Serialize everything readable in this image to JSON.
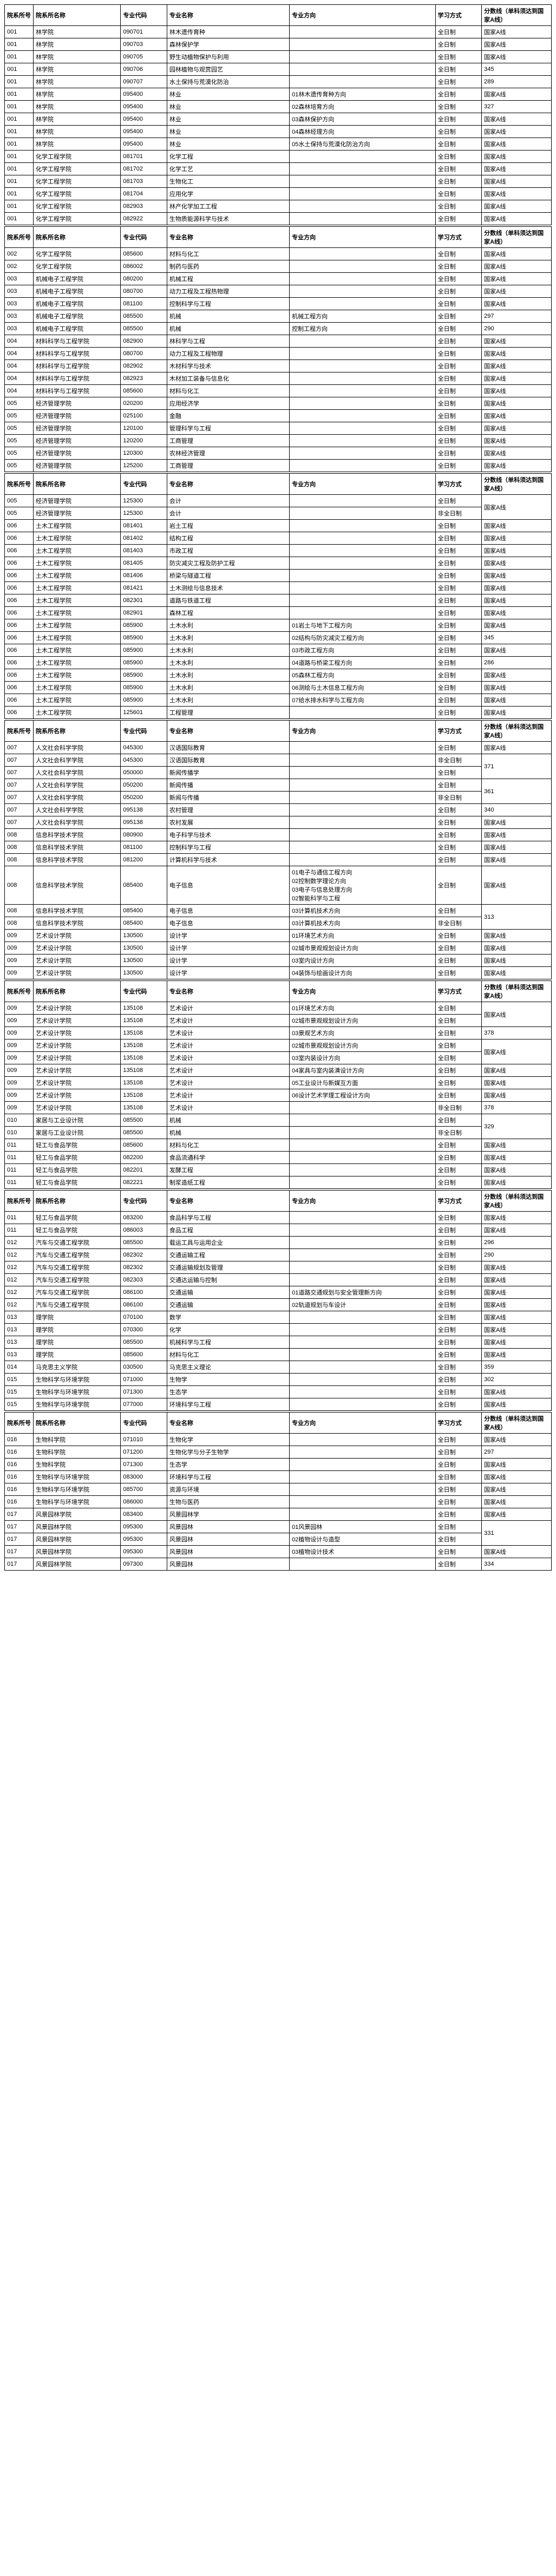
{
  "headers": [
    "院系所号",
    "院系所名称",
    "专业代码",
    "专业名称",
    "专业方向",
    "学习方式",
    "分数线（单科须达到国家A线）"
  ],
  "sections": [
    {
      "rows": [
        [
          "001",
          "林学院",
          "090701",
          "林木遗传育种",
          "",
          "全日制",
          "国家A线"
        ],
        [
          "001",
          "林学院",
          "090703",
          "森林保护学",
          "",
          "全日制",
          "国家A线"
        ],
        [
          "001",
          "林学院",
          "090705",
          "野生动植物保护与利用",
          "",
          "全日制",
          "国家A线"
        ],
        [
          "001",
          "林学院",
          "090706",
          "园林植物与观赏园艺",
          "",
          "全日制",
          "345"
        ],
        [
          "001",
          "林学院",
          "090707",
          "水土保持与荒漠化防治",
          "",
          "全日制",
          "289"
        ],
        [
          "001",
          "林学院",
          "095400",
          "林业",
          "01林木遗传育种方向",
          "全日制",
          "国家A线"
        ],
        [
          "001",
          "林学院",
          "095400",
          "林业",
          "02森林培育方向",
          "全日制",
          "327"
        ],
        [
          "001",
          "林学院",
          "095400",
          "林业",
          "03森林保护方向",
          "全日制",
          "国家A线"
        ],
        [
          "001",
          "林学院",
          "095400",
          "林业",
          "04森林经理方向",
          "全日制",
          "国家A线"
        ],
        [
          "001",
          "林学院",
          "095400",
          "林业",
          "05水土保持与荒漠化防治方向",
          "全日制",
          "国家A线"
        ],
        [
          "001",
          "化学工程学院",
          "081701",
          "化学工程",
          "",
          "全日制",
          "国家A线"
        ],
        [
          "001",
          "化学工程学院",
          "081702",
          "化学工艺",
          "",
          "全日制",
          "国家A线"
        ],
        [
          "001",
          "化学工程学院",
          "081703",
          "生物化工",
          "",
          "全日制",
          "国家A线"
        ],
        [
          "001",
          "化学工程学院",
          "081704",
          "应用化学",
          "",
          "全日制",
          "国家A线"
        ],
        [
          "001",
          "化学工程学院",
          "082903",
          "林产化学加工工程",
          "",
          "全日制",
          "国家A线"
        ],
        [
          "001",
          "化学工程学院",
          "082922",
          "生物质能源科学与技术",
          "",
          "全日制",
          "国家A线"
        ]
      ]
    },
    {
      "rows": [
        [
          "002",
          "化学工程学院",
          "085600",
          "材料与化工",
          "",
          "全日制",
          "国家A线"
        ],
        [
          "002",
          "化学工程学院",
          "086002",
          "制药与医药",
          "",
          "全日制",
          "国家A线"
        ],
        [
          "003",
          "机械电子工程学院",
          "080200",
          "机械工程",
          "",
          "全日制",
          "国家A线"
        ],
        [
          "003",
          "机械电子工程学院",
          "080700",
          "动力工程及工程热物理",
          "",
          "全日制",
          "国家A线"
        ],
        [
          "003",
          "机械电子工程学院",
          "081100",
          "控制科学与工程",
          "",
          "全日制",
          "国家A线"
        ],
        [
          "003",
          "机械电子工程学院",
          "085500",
          "机械",
          "机械工程方向",
          "全日制",
          "297"
        ],
        [
          "003",
          "机械电子工程学院",
          "085500",
          "机械",
          "控制工程方向",
          "全日制",
          "290"
        ],
        [
          "004",
          "材料科学与工程学院",
          "082900",
          "林科学与工程",
          "",
          "全日制",
          "国家A线"
        ],
        [
          "004",
          "材料科学与工程学院",
          "080700",
          "动力工程及工程物理",
          "",
          "全日制",
          "国家A线"
        ],
        [
          "004",
          "材料科学与工程学院",
          "082902",
          "木材科学与技术",
          "",
          "全日制",
          "国家A线"
        ],
        [
          "004",
          "材料科学与工程学院",
          "082923",
          "木材加工装备与信息化",
          "",
          "全日制",
          "国家A线"
        ],
        [
          "004",
          "材料科学与工程学院",
          "085600",
          "材料与化工",
          "",
          "全日制",
          "国家A线"
        ],
        [
          "005",
          "经济管理学院",
          "020200",
          "应用经济学",
          "",
          "全日制",
          "国家A线"
        ],
        [
          "005",
          "经济管理学院",
          "025100",
          "金融",
          "",
          "全日制",
          "国家A线"
        ],
        [
          "005",
          "经济管理学院",
          "120100",
          "管理科学与工程",
          "",
          "全日制",
          "国家A线"
        ],
        [
          "005",
          "经济管理学院",
          "120200",
          "工商管理",
          "",
          "全日制",
          "国家A线"
        ],
        [
          "005",
          "经济管理学院",
          "120300",
          "农林经济管理",
          "",
          "全日制",
          "国家A线"
        ],
        [
          "005",
          "经济管理学院",
          "125200",
          "工商管理",
          "",
          "全日制",
          "国家A线"
        ]
      ]
    },
    {
      "rows": [
        [
          "005",
          "经济管理学院",
          "125300",
          "会计",
          "",
          "全日制",
          "__MERGE_START__"
        ],
        [
          "005",
          "经济管理学院",
          "125300",
          "会计",
          "",
          "非全日制",
          "__MERGE__"
        ],
        [
          "006",
          "土木工程学院",
          "081401",
          "岩土工程",
          "",
          "全日制",
          "国家A线"
        ],
        [
          "006",
          "土木工程学院",
          "081402",
          "结构工程",
          "",
          "全日制",
          "国家A线"
        ],
        [
          "006",
          "土木工程学院",
          "081403",
          "市政工程",
          "",
          "全日制",
          "国家A线"
        ],
        [
          "006",
          "土木工程学院",
          "081405",
          "防灾减灾工程及防护工程",
          "",
          "全日制",
          "国家A线"
        ],
        [
          "006",
          "土木工程学院",
          "081406",
          "桥梁与隧道工程",
          "",
          "全日制",
          "国家A线"
        ],
        [
          "006",
          "土木工程学院",
          "081421",
          "土木测绘与信息技术",
          "",
          "全日制",
          "国家A线"
        ],
        [
          "006",
          "土木工程学院",
          "082301",
          "道路与铁道工程",
          "",
          "全日制",
          "国家A线"
        ],
        [
          "006",
          "土木工程学院",
          "082901",
          "森林工程",
          "",
          "全日制",
          "国家A线"
        ],
        [
          "006",
          "土木工程学院",
          "085900",
          "土木水利",
          "01岩土与地下工程方向",
          "全日制",
          "国家A线"
        ],
        [
          "006",
          "土木工程学院",
          "085900",
          "土木水利",
          "02结构与防灾减灾工程方向",
          "全日制",
          "345"
        ],
        [
          "006",
          "土木工程学院",
          "085900",
          "土木水利",
          "03市政工程方向",
          "全日制",
          "国家A线"
        ],
        [
          "006",
          "土木工程学院",
          "085900",
          "土木水利",
          "04道路与桥梁工程方向",
          "全日制",
          "286"
        ],
        [
          "006",
          "土木工程学院",
          "085900",
          "土木水利",
          "05森林工程方向",
          "全日制",
          "国家A线"
        ],
        [
          "006",
          "土木工程学院",
          "085900",
          "土木水利",
          "06测绘与土木信息工程方向",
          "全日制",
          "国家A线"
        ],
        [
          "006",
          "土木工程学院",
          "085900",
          "土木水利",
          "07给水排水科学与工程方向",
          "全日制",
          "国家A线"
        ],
        [
          "006",
          "土木工程学院",
          "125601",
          "工程管理",
          "",
          "全日制",
          "国家A线"
        ]
      ],
      "mergeValue": "国家A线"
    },
    {
      "rows": [
        [
          "007",
          "人文社会科学学院",
          "045300",
          "汉语国际教育",
          "",
          "全日制",
          "国家A线"
        ],
        [
          "007",
          "人文社会科学学院",
          "045300",
          "汉语国际教育",
          "",
          "非全日制",
          "__MERGE_START__:371"
        ],
        [
          "007",
          "人文社会科学学院",
          "050000",
          "新闻传播学",
          "",
          "全日制",
          "__MERGE__"
        ],
        [
          "007",
          "人文社会科学学院",
          "050200",
          "新闻传播",
          "",
          "全日制",
          "__MERGE_START__:361"
        ],
        [
          "007",
          "人文社会科学学院",
          "050200",
          "新闻与传播",
          "",
          "非全日制",
          "__MERGE__"
        ],
        [
          "007",
          "人文社会科学学院",
          "095138",
          "农村管理",
          "",
          "全日制",
          "340"
        ],
        [
          "007",
          "人文社会科学学院",
          "095138",
          "农村发展",
          "",
          "全日制",
          "国家A线"
        ],
        [
          "008",
          "信息科学技术学院",
          "080900",
          "电子科学与技术",
          "",
          "全日制",
          "国家A线"
        ],
        [
          "008",
          "信息科学技术学院",
          "081100",
          "控制科学与工程",
          "",
          "全日制",
          "国家A线"
        ],
        [
          "008",
          "信息科学技术学院",
          "081200",
          "计算机科学与技术",
          "",
          "全日制",
          "国家A线"
        ],
        [
          "008",
          "信息科学技术学院",
          "085400",
          "电子信息",
          "01电子与通信工程方向\n02控制数学理论方向\n03电子与信息处理方向\n02智能科学与工程",
          "全日制",
          "国家A线"
        ],
        [
          "008",
          "信息科学技术学院",
          "085400",
          "电子信息",
          "03计算机技术方向",
          "全日制",
          "__MERGE_START__:313"
        ],
        [
          "008",
          "信息科学技术学院",
          "085400",
          "电子信息",
          "03计算机技术方向",
          "非全日制",
          "__MERGE__"
        ],
        [
          "009",
          "艺术设计学院",
          "130500",
          "设计学",
          "01环境艺术方向",
          "全日制",
          "国家A线"
        ],
        [
          "009",
          "艺术设计学院",
          "130500",
          "设计学",
          "02城市景观规划设计方向",
          "全日制",
          "国家A线"
        ],
        [
          "009",
          "艺术设计学院",
          "130500",
          "设计学",
          "03室内设计方向",
          "全日制",
          "国家A线"
        ],
        [
          "009",
          "艺术设计学院",
          "130500",
          "设计学",
          "04装饰与绘画设计方向",
          "全日制",
          "国家A线"
        ]
      ]
    },
    {
      "rows": [
        [
          "009",
          "艺术设计学院",
          "135108",
          "艺术设计",
          "01环境艺术方向",
          "全日制",
          "__MERGE_START__:国家A线"
        ],
        [
          "009",
          "艺术设计学院",
          "135108",
          "艺术设计",
          "02城市景观规划设计方向",
          "全日制",
          "__MERGE__"
        ],
        [
          "009",
          "艺术设计学院",
          "135108",
          "艺术设计",
          "03景观艺术方向",
          "全日制",
          "378"
        ],
        [
          "009",
          "艺术设计学院",
          "135108",
          "艺术设计",
          "02城市景观规划设计方向",
          "全日制",
          "__MERGE_START__:国家A线"
        ],
        [
          "009",
          "艺术设计学院",
          "135108",
          "艺术设计",
          "03室内装设计方向",
          "全日制",
          "__MERGE__"
        ],
        [
          "009",
          "艺术设计学院",
          "135108",
          "艺术设计",
          "04家具与室内装潢设计方向",
          "全日制",
          "国家A线"
        ],
        [
          "009",
          "艺术设计学院",
          "135108",
          "艺术设计",
          "05工业设计与新媒互方面",
          "全日制",
          "国家A线"
        ],
        [
          "009",
          "艺术设计学院",
          "135108",
          "艺术设计",
          "06设计艺术学理工程设计方向",
          "全日制",
          "国家A线"
        ],
        [
          "009",
          "艺术设计学院",
          "135108",
          "艺术设计",
          "",
          "非全日制",
          "378"
        ],
        [
          "010",
          "家居与工业设计院",
          "085500",
          "机械",
          "",
          "全日制",
          "__MERGE_START__:329"
        ],
        [
          "010",
          "家居与工业设计院",
          "085500",
          "机械",
          "",
          "非全日制",
          "__MERGE__"
        ],
        [
          "011",
          "轻工与食品学院",
          "085600",
          "材料与化工",
          "",
          "全日制",
          "国家A线"
        ],
        [
          "011",
          "轻工与食品学院",
          "082200",
          "食品流通科学",
          "",
          "全日制",
          "国家A线"
        ],
        [
          "011",
          "轻工与食品学院",
          "082201",
          "发酵工程",
          "",
          "全日制",
          "国家A线"
        ],
        [
          "011",
          "轻工与食品学院",
          "082221",
          "制浆造纸工程",
          "",
          "全日制",
          "国家A线"
        ]
      ]
    },
    {
      "rows": [
        [
          "011",
          "轻工与食品学院",
          "083200",
          "食品科学与工程",
          "",
          "全日制",
          "国家A线"
        ],
        [
          "011",
          "轻工与食品学院",
          "086003",
          "食品工程",
          "",
          "全日制",
          "国家A线"
        ],
        [
          "012",
          "汽车与交通工程学院",
          "085500",
          "载运工具与运用企业",
          "",
          "全日制",
          "296"
        ],
        [
          "012",
          "汽车与交通工程学院",
          "082302",
          "交通运输工程",
          "",
          "全日制",
          "290"
        ],
        [
          "012",
          "汽车与交通工程学院",
          "082302",
          "交通运输规划及管理",
          "",
          "全日制",
          "国家A线"
        ],
        [
          "012",
          "汽车与交通工程学院",
          "082303",
          "交通达运输与控制",
          "",
          "全日制",
          "国家A线"
        ],
        [
          "012",
          "汽车与交通工程学院",
          "086100",
          "交通运输",
          "01道路交通规划与安全管理新方向",
          "全日制",
          "国家A线"
        ],
        [
          "012",
          "汽车与交通工程学院",
          "086100",
          "交通运输",
          "02轨道规划与车设计",
          "全日制",
          "国家A线"
        ],
        [
          "013",
          "理学院",
          "070100",
          "数学",
          "",
          "全日制",
          "国家A线"
        ],
        [
          "013",
          "理学院",
          "070300",
          "化学",
          "",
          "全日制",
          "国家A线"
        ],
        [
          "013",
          "理学院",
          "085500",
          "机械科学与工程",
          "",
          "全日制",
          "国家A线"
        ],
        [
          "013",
          "理学院",
          "085600",
          "材料与化工",
          "",
          "全日制",
          "国家A线"
        ],
        [
          "014",
          "马克思主义学院",
          "030500",
          "马克思主义理论",
          "",
          "全日制",
          "359"
        ],
        [
          "015",
          "生物科学与环境学院",
          "071000",
          "生物学",
          "",
          "全日制",
          "302"
        ],
        [
          "015",
          "生物科学与环境学院",
          "071300",
          "生态学",
          "",
          "全日制",
          "国家A线"
        ],
        [
          "015",
          "生物科学与环境学院",
          "077000",
          "环境科学与工程",
          "",
          "全日制",
          "国家A线"
        ]
      ]
    },
    {
      "rows": [
        [
          "016",
          "生物科学院",
          "071010",
          "生物化学",
          "",
          "全日制",
          "国家A线"
        ],
        [
          "016",
          "生物科学院",
          "071200",
          "生物化学与分子生物学",
          "",
          "全日制",
          "297"
        ],
        [
          "016",
          "生物科学院",
          "071300",
          "生态学",
          "",
          "全日制",
          "国家A线"
        ],
        [
          "016",
          "生物科学与环境学院",
          "083000",
          "环境科学与工程",
          "",
          "全日制",
          "国家A线"
        ],
        [
          "016",
          "生物科学与环境学院",
          "085700",
          "资源与环境",
          "",
          "全日制",
          "国家A线"
        ],
        [
          "016",
          "生物科学与环境学院",
          "086000",
          "生物与医药",
          "",
          "全日制",
          "国家A线"
        ],
        [
          "017",
          "风景园林学院",
          "083400",
          "风景园林学",
          "",
          "全日制",
          "国家A线"
        ],
        [
          "017",
          "风景园林学院",
          "095300",
          "风景园林",
          "01风景园林",
          "全日制",
          "__MERGE_START__:331"
        ],
        [
          "017",
          "风景园林学院",
          "095300",
          "风景园林",
          "02植物设计与造型",
          "全日制",
          "__MERGE__"
        ],
        [
          "017",
          "风景园林学院",
          "095300",
          "风景园林",
          "03植物设计技术",
          "全日制",
          "国家A线"
        ],
        [
          "017",
          "风景园林学院",
          "097300",
          "风景园林",
          "",
          "全日制",
          "334"
        ]
      ]
    }
  ]
}
